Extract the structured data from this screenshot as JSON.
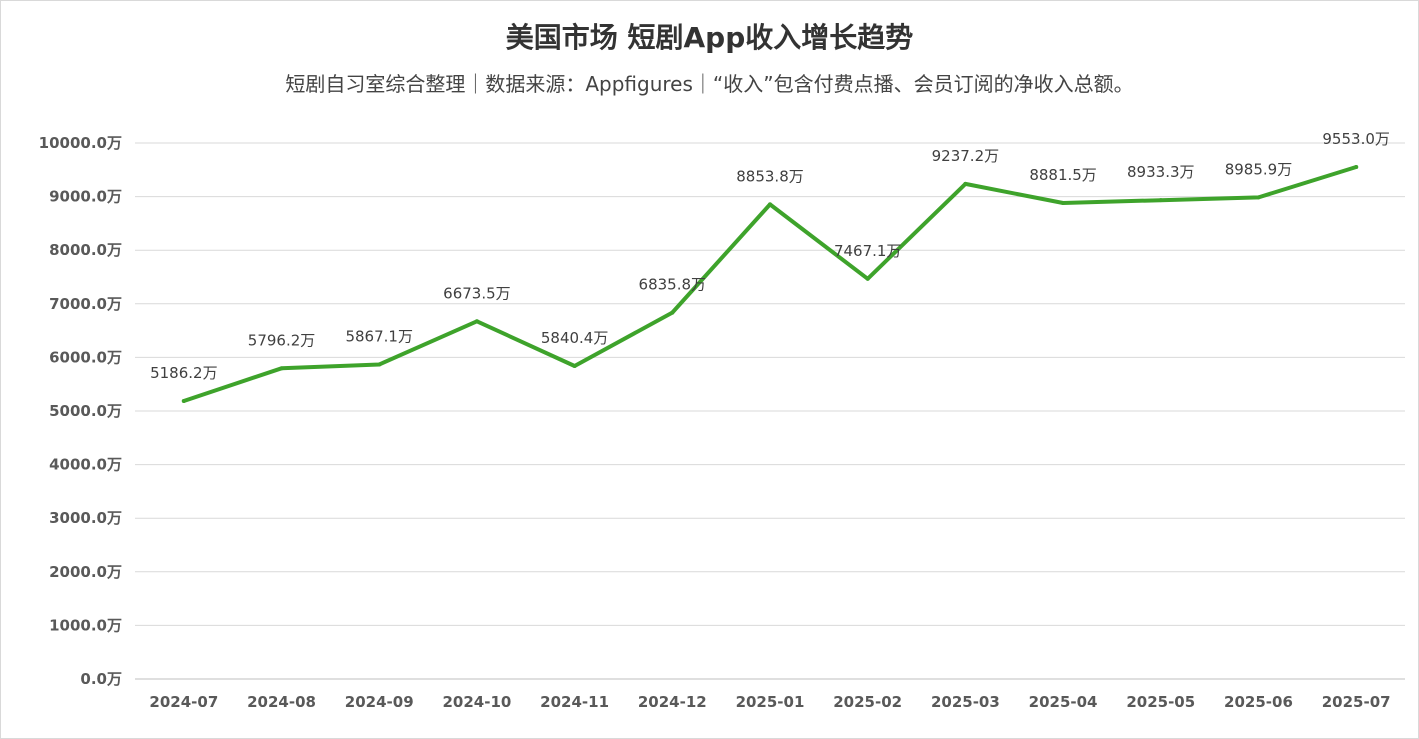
{
  "chart_data": {
    "type": "line",
    "title": "美国市场 短剧App收入增长趋势",
    "subtitle": "短剧自习室综合整理｜数据来源：Appfigures｜“收入”包含付费点播、会员订阅的净收入总额。",
    "categories": [
      "2024-07",
      "2024-08",
      "2024-09",
      "2024-10",
      "2024-11",
      "2024-12",
      "2025-01",
      "2025-02",
      "2025-03",
      "2025-04",
      "2025-05",
      "2025-06",
      "2025-07"
    ],
    "values": [
      5186.2,
      5796.2,
      5867.1,
      6673.5,
      5840.4,
      6835.8,
      8853.8,
      7467.1,
      9237.2,
      8881.5,
      8933.3,
      8985.9,
      9553.0
    ],
    "data_labels": [
      "5186.2万",
      "5796.2万",
      "5867.1万",
      "6673.5万",
      "5840.4万",
      "6835.8万",
      "8853.8万",
      "7467.1万",
      "9237.2万",
      "8881.5万",
      "8933.3万",
      "8985.9万",
      "9553.0万"
    ],
    "yticks": [
      0,
      1000,
      2000,
      3000,
      4000,
      5000,
      6000,
      7000,
      8000,
      9000,
      10000
    ],
    "ytick_labels": [
      "0.0万",
      "1000.0万",
      "2000.0万",
      "3000.0万",
      "4000.0万",
      "5000.0万",
      "6000.0万",
      "7000.0万",
      "8000.0万",
      "9000.0万",
      "10000.0万"
    ],
    "ylim": [
      0,
      10000
    ],
    "xlabel": "",
    "ylabel": "",
    "grid": true,
    "legend": "none",
    "line_color": "#3ea32b",
    "grid_color": "#d9d9d9"
  }
}
